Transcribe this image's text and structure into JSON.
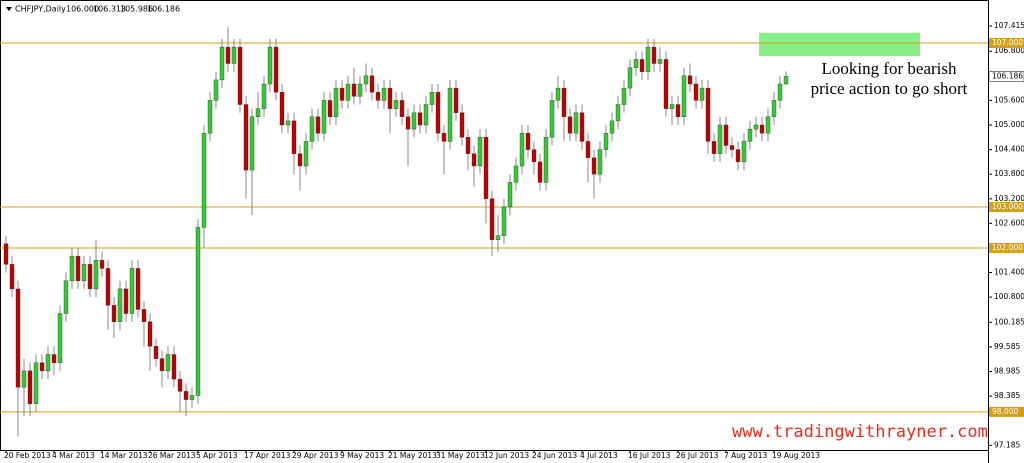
{
  "chart_data": {
    "type": "candlestick",
    "title": "CHFJPY,Daily",
    "last_bar_labels": [
      "106.000",
      "106.313",
      "105.986",
      "106.186"
    ],
    "categories": [
      "20 Feb 2013",
      null,
      null,
      null,
      null,
      null,
      null,
      null,
      "4 Mar 2013",
      null,
      null,
      null,
      null,
      null,
      null,
      null,
      "14 Mar 2013",
      null,
      null,
      null,
      null,
      null,
      null,
      null,
      "26 Mar 2013",
      null,
      null,
      null,
      null,
      null,
      null,
      null,
      "5 Apr 2013",
      null,
      null,
      null,
      null,
      null,
      null,
      null,
      "17 Apr 2013",
      null,
      null,
      null,
      null,
      null,
      null,
      null,
      "29 Apr 2013",
      null,
      null,
      null,
      null,
      null,
      null,
      null,
      "9 May 2013",
      null,
      null,
      null,
      null,
      null,
      null,
      null,
      "21 May 2013",
      null,
      null,
      null,
      null,
      null,
      null,
      null,
      "31 May 2013",
      null,
      null,
      null,
      null,
      null,
      null,
      null,
      "12 Jun 2013",
      null,
      null,
      null,
      null,
      null,
      null,
      null,
      "24 Jun 2013",
      null,
      null,
      null,
      null,
      null,
      null,
      null,
      "4 Jul 2013",
      null,
      null,
      null,
      null,
      null,
      null,
      null,
      "16 Jul 2013",
      null,
      null,
      null,
      null,
      null,
      null,
      null,
      "26 Jul 2013",
      null,
      null,
      null,
      null,
      null,
      null,
      null,
      "7 Aug 2013",
      null,
      null,
      null,
      null,
      null,
      null,
      null,
      "19 Aug 2013",
      null,
      null
    ],
    "ohlc": [
      [
        102.1,
        102.3,
        101.4,
        101.6
      ],
      [
        101.6,
        101.8,
        100.8,
        101.0
      ],
      [
        101.0,
        101.2,
        97.4,
        98.6
      ],
      [
        98.6,
        99.3,
        97.9,
        99.0
      ],
      [
        99.0,
        99.2,
        97.9,
        98.2
      ],
      [
        98.2,
        99.4,
        98.0,
        99.2
      ],
      [
        99.2,
        99.4,
        98.8,
        99.0
      ],
      [
        99.0,
        99.6,
        98.8,
        99.4
      ],
      [
        99.4,
        99.6,
        98.9,
        99.2
      ],
      [
        99.2,
        100.6,
        99.0,
        100.4
      ],
      [
        100.4,
        101.4,
        100.2,
        101.2
      ],
      [
        101.2,
        102.0,
        101.0,
        101.8
      ],
      [
        101.8,
        102.0,
        101.0,
        101.2
      ],
      [
        101.2,
        101.8,
        101.0,
        101.6
      ],
      [
        101.6,
        101.8,
        100.8,
        101.0
      ],
      [
        101.0,
        102.2,
        100.8,
        101.7
      ],
      [
        101.7,
        101.9,
        101.3,
        101.5
      ],
      [
        101.5,
        101.7,
        100.0,
        100.6
      ],
      [
        100.6,
        100.8,
        99.8,
        100.2
      ],
      [
        100.2,
        101.2,
        100.0,
        101.0
      ],
      [
        101.0,
        101.2,
        100.2,
        100.4
      ],
      [
        100.4,
        101.7,
        100.2,
        101.5
      ],
      [
        101.5,
        101.7,
        100.3,
        100.5
      ],
      [
        100.5,
        100.7,
        99.6,
        100.2
      ],
      [
        100.2,
        100.4,
        99.0,
        99.6
      ],
      [
        99.6,
        99.8,
        99.1,
        99.3
      ],
      [
        99.3,
        99.5,
        98.6,
        99.0
      ],
      [
        99.0,
        99.6,
        98.8,
        99.4
      ],
      [
        99.4,
        99.6,
        98.6,
        98.8
      ],
      [
        98.8,
        99.0,
        98.0,
        98.5
      ],
      [
        98.5,
        98.7,
        97.9,
        98.3
      ],
      [
        98.3,
        98.6,
        98.1,
        98.4
      ],
      [
        98.4,
        102.7,
        98.2,
        102.5
      ],
      [
        102.5,
        105.0,
        102.0,
        104.8
      ],
      [
        104.8,
        105.8,
        104.6,
        105.6
      ],
      [
        105.6,
        106.3,
        105.4,
        106.1
      ],
      [
        106.1,
        107.1,
        105.9,
        106.9
      ],
      [
        106.9,
        107.4,
        106.3,
        106.5
      ],
      [
        106.5,
        107.1,
        106.3,
        106.9
      ],
      [
        106.9,
        107.1,
        105.3,
        105.5
      ],
      [
        105.5,
        105.7,
        103.2,
        103.9
      ],
      [
        103.9,
        105.4,
        102.8,
        105.2
      ],
      [
        105.2,
        105.8,
        105.0,
        105.4
      ],
      [
        105.4,
        106.2,
        105.2,
        106.0
      ],
      [
        106.0,
        107.1,
        105.8,
        106.9
      ],
      [
        106.9,
        107.1,
        105.6,
        105.8
      ],
      [
        105.8,
        106.0,
        104.8,
        105.0
      ],
      [
        105.0,
        105.3,
        104.8,
        105.1
      ],
      [
        105.1,
        105.3,
        103.8,
        104.3
      ],
      [
        104.3,
        104.5,
        103.4,
        104.0
      ],
      [
        104.0,
        104.8,
        103.8,
        104.6
      ],
      [
        104.6,
        105.4,
        104.4,
        105.2
      ],
      [
        105.2,
        105.4,
        104.6,
        104.8
      ],
      [
        104.8,
        105.8,
        104.6,
        105.6
      ],
      [
        105.6,
        105.8,
        105.0,
        105.2
      ],
      [
        105.2,
        106.1,
        105.0,
        105.9
      ],
      [
        105.9,
        106.1,
        105.4,
        105.6
      ],
      [
        105.6,
        106.2,
        105.4,
        106.0
      ],
      [
        106.0,
        106.4,
        105.5,
        105.7
      ],
      [
        105.7,
        106.2,
        105.5,
        106.0
      ],
      [
        106.0,
        106.5,
        105.8,
        106.2
      ],
      [
        106.2,
        106.4,
        105.6,
        105.8
      ],
      [
        105.8,
        106.0,
        105.4,
        105.6
      ],
      [
        105.6,
        106.1,
        105.4,
        105.9
      ],
      [
        105.9,
        106.1,
        104.8,
        105.4
      ],
      [
        105.4,
        105.8,
        105.2,
        105.6
      ],
      [
        105.6,
        105.8,
        105.0,
        105.2
      ],
      [
        105.2,
        105.4,
        104.0,
        104.9
      ],
      [
        104.9,
        105.5,
        104.7,
        105.3
      ],
      [
        105.3,
        105.5,
        104.8,
        105.0
      ],
      [
        105.0,
        105.7,
        104.8,
        105.5
      ],
      [
        105.5,
        106.0,
        105.3,
        105.8
      ],
      [
        105.8,
        106.0,
        104.6,
        104.8
      ],
      [
        104.8,
        105.0,
        103.8,
        104.6
      ],
      [
        104.6,
        106.1,
        104.4,
        105.9
      ],
      [
        105.9,
        106.1,
        105.1,
        105.3
      ],
      [
        105.3,
        105.5,
        104.5,
        104.7
      ],
      [
        104.7,
        104.9,
        103.9,
        104.3
      ],
      [
        104.3,
        104.5,
        103.5,
        104.0
      ],
      [
        104.0,
        104.9,
        103.8,
        104.7
      ],
      [
        104.7,
        104.9,
        102.6,
        103.2
      ],
      [
        103.2,
        103.4,
        101.8,
        102.2
      ],
      [
        102.2,
        102.8,
        101.9,
        102.3
      ],
      [
        102.3,
        103.2,
        102.1,
        103.0
      ],
      [
        103.0,
        103.8,
        102.8,
        103.6
      ],
      [
        103.6,
        104.2,
        103.4,
        104.0
      ],
      [
        104.0,
        105.0,
        103.8,
        104.8
      ],
      [
        104.8,
        105.0,
        104.2,
        104.4
      ],
      [
        104.4,
        104.6,
        103.8,
        104.1
      ],
      [
        104.1,
        104.3,
        103.4,
        103.6
      ],
      [
        103.6,
        104.9,
        103.4,
        104.7
      ],
      [
        104.7,
        105.8,
        104.5,
        105.6
      ],
      [
        105.6,
        106.2,
        105.4,
        105.9
      ],
      [
        105.9,
        106.1,
        104.6,
        105.2
      ],
      [
        105.2,
        105.4,
        104.6,
        104.8
      ],
      [
        104.8,
        105.5,
        104.6,
        105.3
      ],
      [
        105.3,
        105.5,
        104.4,
        104.6
      ],
      [
        104.6,
        104.8,
        103.6,
        104.2
      ],
      [
        104.2,
        104.4,
        103.2,
        103.8
      ],
      [
        103.8,
        104.6,
        103.6,
        104.4
      ],
      [
        104.4,
        105.0,
        104.2,
        104.8
      ],
      [
        104.8,
        105.3,
        104.6,
        105.1
      ],
      [
        105.1,
        105.7,
        104.9,
        105.5
      ],
      [
        105.5,
        106.1,
        105.3,
        105.9
      ],
      [
        105.9,
        106.6,
        105.7,
        106.4
      ],
      [
        106.4,
        106.8,
        106.2,
        106.6
      ],
      [
        106.6,
        106.8,
        106.1,
        106.3
      ],
      [
        106.3,
        107.1,
        106.1,
        106.9
      ],
      [
        106.9,
        107.1,
        106.3,
        106.5
      ],
      [
        106.5,
        106.9,
        106.3,
        106.6
      ],
      [
        106.6,
        106.8,
        105.2,
        105.4
      ],
      [
        105.4,
        105.7,
        105.0,
        105.5
      ],
      [
        105.5,
        105.7,
        105.0,
        105.2
      ],
      [
        105.2,
        106.4,
        105.0,
        106.2
      ],
      [
        106.2,
        106.5,
        105.8,
        106.0
      ],
      [
        106.0,
        106.2,
        105.4,
        105.6
      ],
      [
        105.6,
        106.1,
        105.4,
        105.9
      ],
      [
        105.9,
        106.1,
        104.3,
        104.6
      ],
      [
        104.6,
        104.8,
        104.1,
        104.3
      ],
      [
        104.3,
        105.2,
        104.1,
        105.0
      ],
      [
        105.0,
        105.2,
        104.3,
        104.5
      ],
      [
        104.5,
        104.7,
        104.2,
        104.4
      ],
      [
        104.4,
        104.6,
        103.9,
        104.1
      ],
      [
        104.1,
        104.8,
        103.9,
        104.6
      ],
      [
        104.6,
        105.1,
        104.4,
        104.9
      ],
      [
        104.9,
        105.2,
        104.7,
        105.0
      ],
      [
        105.0,
        105.2,
        104.6,
        104.8
      ],
      [
        104.8,
        105.4,
        104.6,
        105.2
      ],
      [
        105.2,
        105.8,
        105.0,
        105.6
      ],
      [
        105.6,
        106.2,
        105.4,
        106.0
      ],
      [
        106.0,
        106.313,
        105.986,
        106.186
      ]
    ],
    "up_color": "#33cc33",
    "down_color": "#c00000",
    "ylim": [
      97.07,
      108.05
    ],
    "yticks": [
      {
        "value": 107.415,
        "label": "107.415"
      },
      {
        "value": 106.8,
        "label": "106.800"
      },
      {
        "value": 105.6,
        "label": "105.600"
      },
      {
        "value": 105,
        "label": "105.000"
      },
      {
        "value": 104.4,
        "label": "104.400"
      },
      {
        "value": 103.8,
        "label": "103.800"
      },
      {
        "value": 103.2,
        "label": "103.200"
      },
      {
        "value": 102.6,
        "label": "102.600"
      },
      {
        "value": 101.4,
        "label": "101.400"
      },
      {
        "value": 100.8,
        "label": "100.800"
      },
      {
        "value": 100.185,
        "label": "100.185"
      },
      {
        "value": 99.585,
        "label": "99.585"
      },
      {
        "value": 98.985,
        "label": "98.985"
      },
      {
        "value": 98.385,
        "label": "98.385"
      },
      {
        "value": 97.185,
        "label": "97.185"
      }
    ],
    "levels": [
      {
        "value": 107,
        "label": "107.000"
      },
      {
        "value": 103,
        "label": "103.000"
      },
      {
        "value": 102,
        "label": "102.000"
      },
      {
        "value": 98,
        "label": "98.000"
      }
    ],
    "level_color": "#d4a017",
    "current_price": {
      "value": 106.186,
      "label": "106.186"
    },
    "zone": {
      "ylim": [
        106.68,
        107.25
      ],
      "color": "#88ee88"
    },
    "annotation": [
      "Looking for bearish",
      "price action to go short"
    ],
    "watermark": "www.tradingwithrayner.com"
  }
}
